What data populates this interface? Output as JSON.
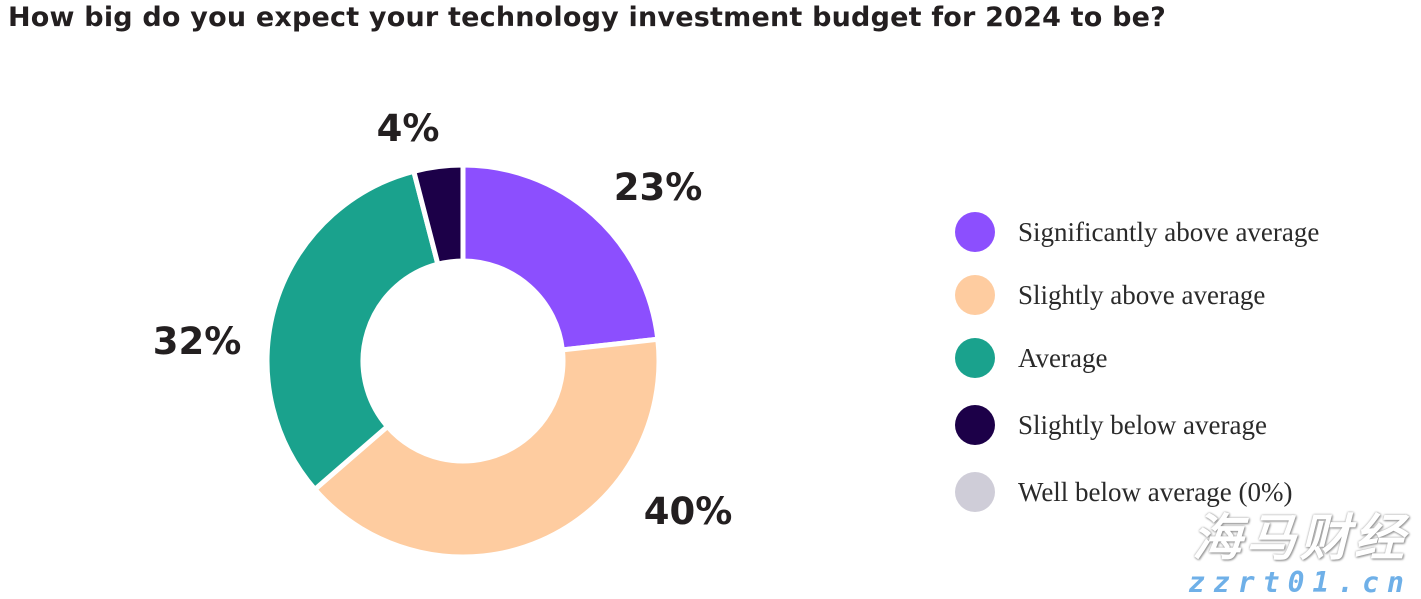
{
  "chart_data": {
    "type": "pie",
    "donut": true,
    "title": "How big do you expect your technology investment budget for 2024 to be?",
    "legend_position": "right",
    "slices": [
      {
        "name": "Significantly above average",
        "value": 23,
        "label": "23%",
        "color": "#8c4ffe"
      },
      {
        "name": "Slightly above average",
        "value": 40,
        "label": "40%",
        "color": "#fecca0"
      },
      {
        "name": "Average",
        "value": 32,
        "label": "32%",
        "color": "#1aa28d"
      },
      {
        "name": "Slightly below average",
        "value": 4,
        "label": "4%",
        "color": "#1c0048"
      },
      {
        "name": "Well below average (0%)",
        "value": 0,
        "label": "",
        "color": "#cfcdd8"
      }
    ]
  },
  "watermark": {
    "text": "海马财经",
    "url": "zzrt01.cn"
  }
}
